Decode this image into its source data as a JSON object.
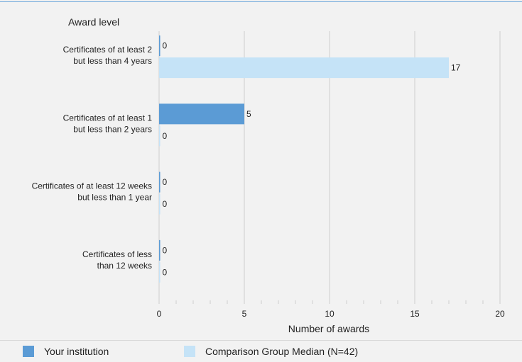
{
  "colors": {
    "your_institution": "#5b9bd5",
    "comparison_group": "#c5e3f7",
    "grid": "#cfcfcf",
    "text": "#222222"
  },
  "chart_data": {
    "type": "bar",
    "orientation": "horizontal",
    "title": "Award level",
    "xlabel": "Number of awards",
    "xlim": [
      0,
      20
    ],
    "xticks": [
      0,
      5,
      10,
      15,
      20
    ],
    "grid": true,
    "legend_position": "bottom",
    "categories": [
      [
        "Certificates of at least 2",
        "but less than 4 years"
      ],
      [
        "Certificates of at least 1",
        "but  less than 2 years"
      ],
      [
        "Certificates of at least 12 weeks",
        "but less than 1 year"
      ],
      [
        "Certificates of less",
        "than 12 weeks"
      ]
    ],
    "series": [
      {
        "name": "Your institution",
        "values": [
          0,
          5,
          0,
          0
        ]
      },
      {
        "name": "Comparison Group Median (N=42)",
        "values": [
          17,
          0,
          0,
          0
        ]
      }
    ]
  }
}
